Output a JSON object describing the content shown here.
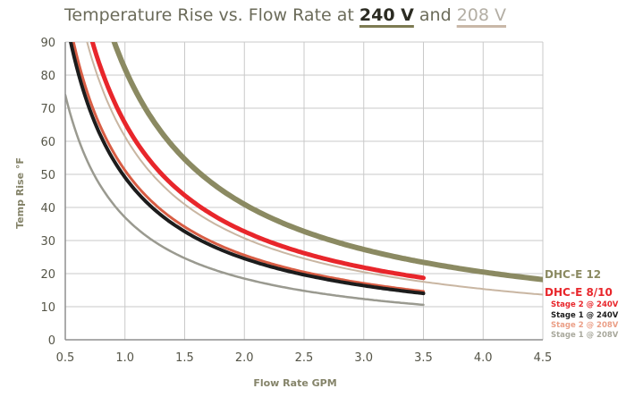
{
  "title": {
    "prefix": "Temperature Rise vs. Flow Rate at ",
    "v1": "240 V",
    "mid": " and ",
    "v2": "208 V"
  },
  "chart_data": {
    "type": "line",
    "title": "Temperature Rise vs. Flow Rate at 240 V and 208 V",
    "xlabel": "Flow Rate GPM",
    "ylabel": "Temp Rise °F",
    "xlim": [
      0.5,
      4.5
    ],
    "ylim": [
      0,
      90
    ],
    "xticks": [
      "0.5",
      "1.0",
      "1.5",
      "2.0",
      "2.5",
      "3.0",
      "3.5",
      "4.0",
      "4.5"
    ],
    "yticks": [
      "0",
      "10",
      "20",
      "30",
      "40",
      "50",
      "60",
      "70",
      "80",
      "90"
    ],
    "grid": true,
    "series": [
      {
        "name": "DHC-E 12",
        "label": "DHC-E 12",
        "color": "#8b8a62",
        "labelColor": "#8b8a62",
        "width": 6,
        "k": 81.9,
        "xmax": 4.5,
        "labelSize": 12
      },
      {
        "name": "DHC-E 12 (208V)",
        "label": "",
        "color": "#c9b6a2",
        "labelColor": "#c9b6a2",
        "width": 2,
        "k": 61.4,
        "xmax": 4.5,
        "labelSize": 12
      },
      {
        "name": "DHC-E 8/10",
        "label": "DHC-E 8/10",
        "color": "#e8262b",
        "labelColor": "#e8262b",
        "width": 5,
        "k": 65.5,
        "xmax": 3.5,
        "labelSize": 12
      },
      {
        "name": "Stage 2 @ 240V",
        "label": "Stage 2 @ 240V",
        "color": "#d85d44",
        "labelColor": "#e8262b",
        "width": 3,
        "k": 51.2,
        "xmax": 3.5,
        "labelSize": 8.5
      },
      {
        "name": "Stage 1 @ 240V",
        "label": "Stage 1 @ 240V",
        "color": "#1c1c1c",
        "labelColor": "#1c1c1c",
        "width": 4,
        "k": 49.1,
        "xmax": 3.5,
        "labelSize": 8.5
      },
      {
        "name": "Stage 2 @ 208V",
        "label": "Stage 2 @ 208V",
        "color": "#f0a893",
        "labelColor": "#eb9f87",
        "width": 2,
        "k": 49.1,
        "xmax": 3.5,
        "labelSize": 8.5
      },
      {
        "name": "Stage 1 @ 208V",
        "label": "Stage 1 @ 208V",
        "color": "#9a9a90",
        "labelColor": "#a8a89c",
        "width": 2.5,
        "k": 37.0,
        "xmax": 3.5,
        "labelSize": 8.5
      }
    ]
  }
}
